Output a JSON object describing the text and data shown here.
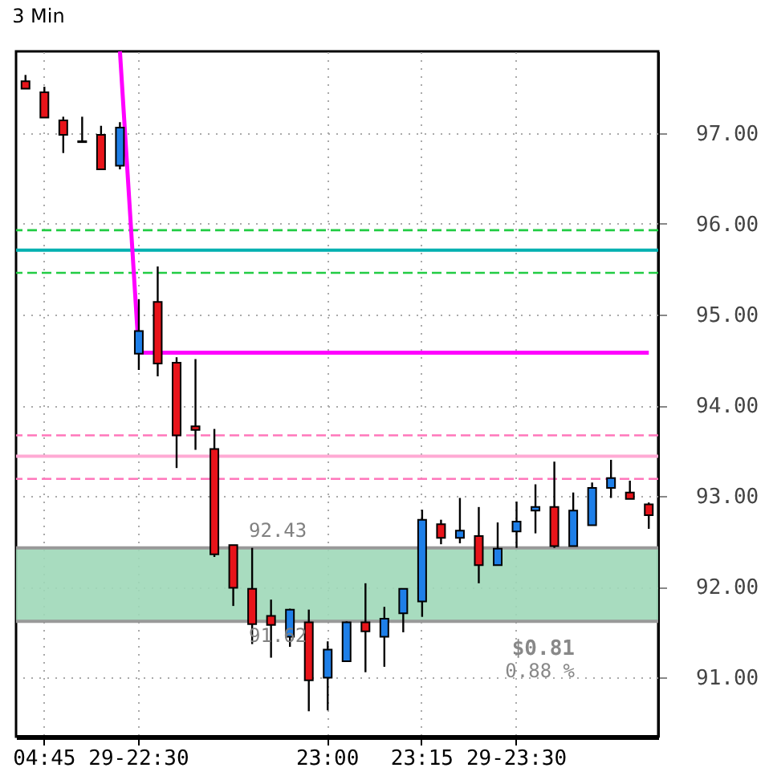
{
  "chart_data": {
    "type": "candlestick",
    "title": "3 Min",
    "categories": [
      null,
      "04:45",
      null,
      null,
      null,
      null,
      "29-22:30",
      null,
      null,
      null,
      null,
      null,
      null,
      null,
      null,
      null,
      "23:00",
      null,
      null,
      null,
      null,
      "23:15",
      null,
      null,
      null,
      null,
      "29-23:30",
      null,
      null,
      null,
      null,
      null,
      null,
      null
    ],
    "ohlc": [
      [
        97.57,
        97.64,
        97.49,
        97.49
      ],
      [
        97.45,
        97.51,
        97.17,
        97.17
      ],
      [
        97.14,
        97.18,
        96.78,
        96.98
      ],
      [
        96.91,
        97.18,
        96.9,
        96.9
      ],
      [
        96.98,
        97.08,
        96.6,
        96.6
      ],
      [
        96.64,
        97.12,
        96.6,
        97.06
      ],
      [
        94.57,
        95.17,
        94.39,
        94.82
      ],
      [
        95.14,
        95.53,
        94.32,
        94.46
      ],
      [
        94.47,
        94.53,
        93.31,
        93.67
      ],
      [
        93.77,
        94.51,
        93.51,
        93.73
      ],
      [
        93.52,
        93.74,
        92.33,
        92.36
      ],
      [
        92.46,
        92.46,
        91.79,
        91.99
      ],
      [
        91.98,
        92.43,
        91.37,
        91.59
      ],
      [
        91.68,
        91.86,
        91.22,
        91.58
      ],
      [
        91.45,
        91.76,
        91.34,
        91.75
      ],
      [
        91.61,
        91.75,
        90.63,
        90.97
      ],
      [
        91.0,
        91.4,
        90.64,
        91.31
      ],
      [
        91.18,
        91.62,
        91.18,
        91.61
      ],
      [
        91.61,
        92.04,
        91.06,
        91.51
      ],
      [
        91.45,
        91.78,
        91.12,
        91.65
      ],
      [
        91.71,
        91.98,
        91.5,
        91.98
      ],
      [
        91.84,
        92.85,
        91.67,
        92.74
      ],
      [
        92.69,
        92.74,
        92.47,
        92.54
      ],
      [
        92.54,
        92.98,
        92.48,
        92.62
      ],
      [
        92.56,
        92.88,
        92.04,
        92.24
      ],
      [
        92.24,
        92.71,
        92.24,
        92.42
      ],
      [
        92.61,
        92.94,
        92.43,
        92.72
      ],
      [
        92.84,
        93.13,
        92.59,
        92.88
      ],
      [
        92.88,
        93.38,
        92.43,
        92.45
      ],
      [
        92.45,
        93.04,
        92.45,
        92.84
      ],
      [
        92.68,
        93.15,
        92.68,
        93.09
      ],
      [
        93.09,
        93.4,
        92.98,
        93.2
      ],
      [
        93.04,
        93.17,
        92.97,
        92.97
      ],
      [
        92.91,
        92.93,
        92.64,
        92.79
      ]
    ],
    "colors": [
      "#e8141a",
      "#e8141a",
      "#e8141a",
      "#e8141a",
      "#e8141a",
      "#1e7fe8",
      "#1e7fe8",
      "#e8141a",
      "#e8141a",
      "#e8141a",
      "#e8141a",
      "#e8141a",
      "#e8141a",
      "#e8141a",
      "#1e7fe8",
      "#e8141a",
      "#1e7fe8",
      "#1e7fe8",
      "#e8141a",
      "#1e7fe8",
      "#1e7fe8",
      "#1e7fe8",
      "#e8141a",
      "#1e7fe8",
      "#e8141a",
      "#1e7fe8",
      "#1e7fe8",
      "#1e7fe8",
      "#e8141a",
      "#1e7fe8",
      "#1e7fe8",
      "#1e7fe8",
      "#e8141a",
      "#e8141a"
    ],
    "series": [
      {
        "type": "line",
        "color": "#ff00ff",
        "values": [
          null,
          null,
          null,
          null,
          null,
          97.9,
          94.58,
          94.58,
          94.58,
          94.58,
          94.58,
          94.58,
          94.58,
          94.58,
          94.58,
          94.58,
          94.58,
          94.58,
          94.58,
          94.58,
          94.58,
          94.58,
          94.58,
          94.58,
          94.58,
          94.58,
          94.58,
          94.58,
          94.58,
          94.58,
          94.58,
          94.58,
          94.58,
          94.58
        ]
      }
    ],
    "ylim": [
      90.35,
      97.9
    ],
    "yticks": [
      {
        "value": 91,
        "label": "91.00"
      },
      {
        "value": 92,
        "label": "92.00"
      },
      {
        "value": 93,
        "label": "93.00"
      },
      {
        "value": 94,
        "label": "94.00"
      },
      {
        "value": 95,
        "label": "95.00"
      },
      {
        "value": 96,
        "label": "96.00"
      },
      {
        "value": 97,
        "label": "97.00"
      }
    ],
    "ref_lines": [
      {
        "axis": "y",
        "value": 95.93,
        "color": "#22cc44",
        "line_style": "dashed"
      },
      {
        "axis": "y",
        "value": 95.71,
        "color": "#00b0b0",
        "line_style": "solid"
      },
      {
        "axis": "y",
        "value": 95.46,
        "color": "#22cc44",
        "line_style": "dashed"
      },
      {
        "axis": "y",
        "value": 93.67,
        "color": "#ff77bb",
        "line_style": "dashed"
      },
      {
        "axis": "y",
        "value": 93.44,
        "color": "#ffaad4",
        "line_style": "solid"
      },
      {
        "axis": "y",
        "value": 93.19,
        "color": "#ff77bb",
        "line_style": "dashed"
      },
      {
        "axis": "y",
        "value": 92.43,
        "color": "#999999",
        "line_style": "solid",
        "label": "92.43"
      },
      {
        "axis": "y",
        "value": 91.62,
        "color": "#999999",
        "line_style": "solid",
        "label": "91.62"
      }
    ],
    "bands": [
      {
        "axis": "y",
        "from": 91.62,
        "to": 92.43,
        "color": "#9ed8b8"
      }
    ],
    "annotations": [
      "$0.81",
      "0.88 %"
    ],
    "grid": true,
    "marker": "none"
  }
}
